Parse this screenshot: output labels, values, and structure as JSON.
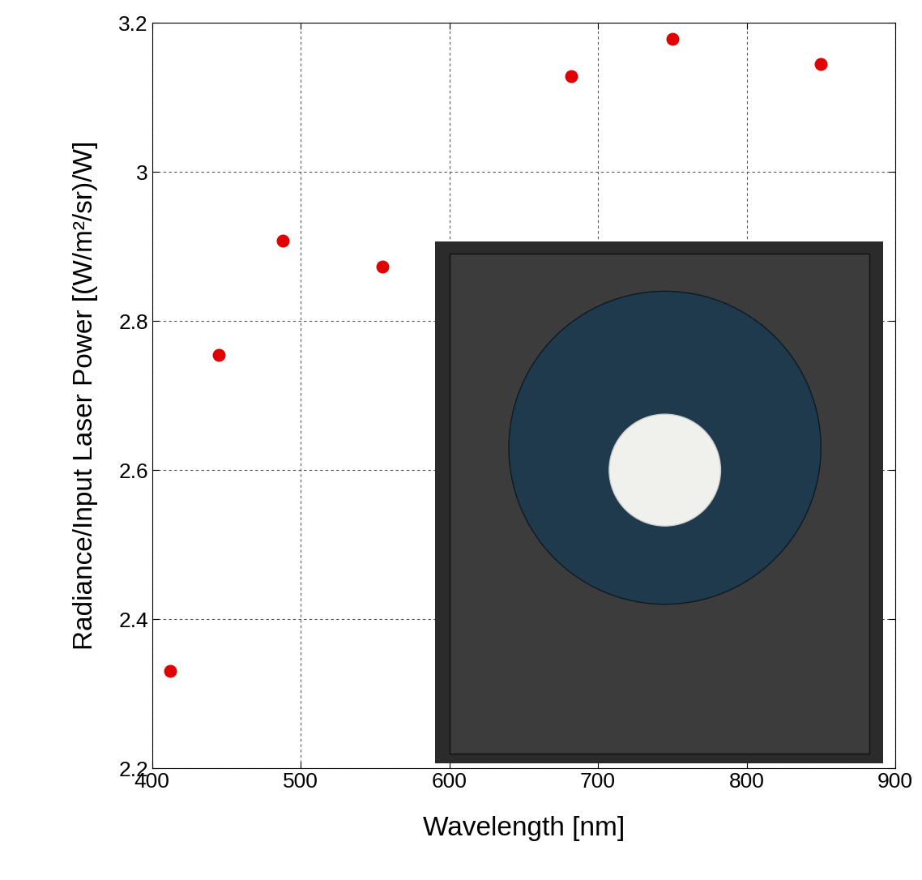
{
  "chart_data": {
    "type": "scatter",
    "x_label": "Wavelength [nm]",
    "y_label": "Radiance/Input Laser Power [(W/m²/sr)/W]",
    "x": [
      412,
      445,
      488,
      555,
      682,
      750,
      850
    ],
    "values": [
      2.33,
      2.755,
      2.908,
      2.873,
      3.128,
      3.178,
      3.145
    ],
    "color": "#e00000",
    "marker": "o",
    "xlim": [
      400,
      900
    ],
    "xticks": [
      400,
      500,
      600,
      700,
      800,
      900
    ],
    "ylim": [
      2.2,
      3.2
    ],
    "yticks": [
      2.2,
      2.4,
      2.6,
      2.8,
      3,
      3.2
    ],
    "grid": true
  }
}
